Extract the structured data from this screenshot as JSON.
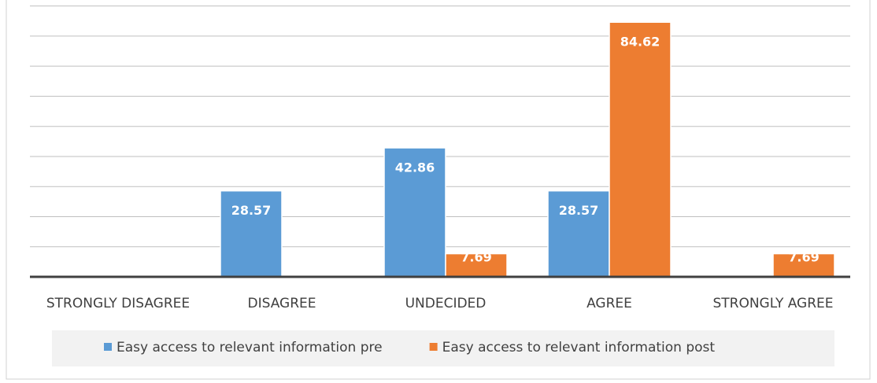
{
  "chart_data": {
    "type": "bar",
    "categories": [
      "STRONGLY DISAGREE",
      "DISAGREE",
      "UNDECIDED",
      "AGREE",
      "STRONGLY AGREE"
    ],
    "series": [
      {
        "name": "Easy access to relevant information pre",
        "color": "#5b9bd5",
        "values": [
          0,
          28.57,
          42.86,
          28.57,
          0
        ]
      },
      {
        "name": "Easy access to relevant information post",
        "color": "#ed7d31",
        "values": [
          0,
          0,
          7.69,
          84.62,
          7.69
        ]
      }
    ],
    "ylim": [
      0,
      92
    ],
    "yticks": [
      0,
      10,
      20,
      30,
      40,
      50,
      60,
      70,
      80,
      90
    ],
    "grid": true
  }
}
